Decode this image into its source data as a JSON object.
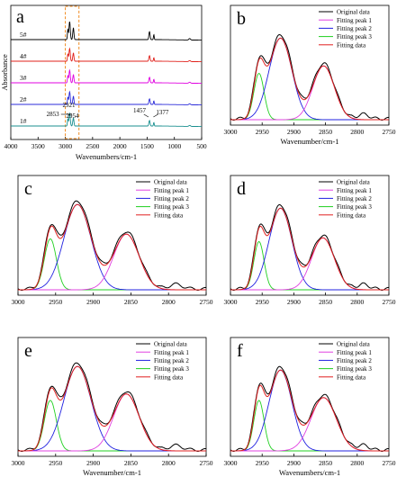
{
  "chart_data": [
    {
      "panel": "a",
      "type": "line",
      "xlabel": "Wavenumbers/cm-1",
      "ylabel": "Absorbance",
      "xlim": [
        4000,
        500
      ],
      "xticks": [
        "4000",
        "3500",
        "3000",
        "2500",
        "2000",
        "1500",
        "1000",
        "500"
      ],
      "series": [
        {
          "name": "5#",
          "color": "#000000"
        },
        {
          "name": "4#",
          "color": "#e0201b"
        },
        {
          "name": "3#",
          "color": "#e000e0"
        },
        {
          "name": "2#",
          "color": "#2b2bd9"
        },
        {
          "name": "1#",
          "color": "#1a8f8f"
        }
      ],
      "peak_labels": [
        "2853",
        "2921",
        "2954",
        "1457",
        "1377"
      ],
      "highlight_range": [
        3000,
        2750
      ]
    },
    {
      "panel": "b",
      "type": "line",
      "xlabel": "Wavenumber/cm-1",
      "xlim": [
        3000,
        2750
      ],
      "xticks": [
        "3000",
        "2950",
        "2900",
        "2850",
        "2800",
        "2750"
      ],
      "legend": [
        "Original data",
        "Fitting peak 1",
        "Fitting peak 2",
        "Fitting peak 3",
        "Fitting data"
      ],
      "peaks": [
        {
          "name": "Fitting peak 3",
          "center": 2955,
          "height": 0.5,
          "width": 8,
          "color": "#20d020"
        },
        {
          "name": "Fitting peak 2",
          "center": 2921,
          "height": 0.88,
          "width": 18,
          "color": "#2020e0"
        },
        {
          "name": "Fitting peak 1",
          "center": 2853,
          "height": 0.58,
          "width": 17,
          "color": "#e040e0"
        }
      ]
    },
    {
      "panel": "c",
      "type": "line",
      "xlabel": "",
      "xlim": [
        3000,
        2750
      ],
      "xticks": [
        "3000",
        "2950",
        "2900",
        "2850",
        "2800",
        "2750"
      ],
      "legend": [
        "Original data",
        "Fitting peak 1",
        "Fitting peak 2",
        "Fitting peak 3",
        "Fitting data"
      ],
      "peaks": [
        {
          "name": "Fitting peak 3",
          "center": 2957,
          "height": 0.55,
          "width": 8,
          "color": "#20d020"
        },
        {
          "name": "Fitting peak 2",
          "center": 2921,
          "height": 0.92,
          "width": 18,
          "color": "#2020e0"
        },
        {
          "name": "Fitting peak 1",
          "center": 2856,
          "height": 0.6,
          "width": 17,
          "color": "#e040e0"
        }
      ]
    },
    {
      "panel": "d",
      "type": "line",
      "xlabel": "",
      "xlim": [
        3000,
        2750
      ],
      "xticks": [
        "3000",
        "2950",
        "2900",
        "2850",
        "2800",
        "2750"
      ],
      "legend": [
        "Original data",
        "Fitting peak 1",
        "Fitting peak 2",
        "Fitting peak 3",
        "Fitting data"
      ],
      "peaks": [
        {
          "name": "Fitting peak 3",
          "center": 2955,
          "height": 0.52,
          "width": 8,
          "color": "#20d020"
        },
        {
          "name": "Fitting peak 2",
          "center": 2921,
          "height": 0.88,
          "width": 18,
          "color": "#2020e0"
        },
        {
          "name": "Fitting peak 1",
          "center": 2854,
          "height": 0.56,
          "width": 18,
          "color": "#e040e0"
        }
      ]
    },
    {
      "panel": "e",
      "type": "line",
      "xlabel": "Wavenumber/cm-1",
      "xlim": [
        3000,
        2750
      ],
      "xticks": [
        "3000",
        "2950",
        "2900",
        "2850",
        "2800",
        "2750"
      ],
      "legend": [
        "Original data",
        "Fitting peak 1",
        "Fitting peak 2",
        "Fitting peak 3",
        "Fitting data"
      ],
      "peaks": [
        {
          "name": "Fitting peak 3",
          "center": 2957,
          "height": 0.55,
          "width": 8,
          "color": "#20d020"
        },
        {
          "name": "Fitting peak 2",
          "center": 2921,
          "height": 0.92,
          "width": 18,
          "color": "#2020e0"
        },
        {
          "name": "Fitting peak 1",
          "center": 2856,
          "height": 0.62,
          "width": 17,
          "color": "#e040e0"
        }
      ]
    },
    {
      "panel": "f",
      "type": "line",
      "xlabel": "Wavenumbers/cm-1",
      "xlim": [
        3000,
        2750
      ],
      "xticks": [
        "3000",
        "2950",
        "2900",
        "2850",
        "2800",
        "2750"
      ],
      "legend": [
        "Original data",
        "Fitting peak 1",
        "Fitting peak 2",
        "Fitting peak 3",
        "Fitting data"
      ],
      "peaks": [
        {
          "name": "Fitting peak 3",
          "center": 2955,
          "height": 0.55,
          "width": 8,
          "color": "#20d020"
        },
        {
          "name": "Fitting peak 2",
          "center": 2921,
          "height": 0.88,
          "width": 18,
          "color": "#2020e0"
        },
        {
          "name": "Fitting peak 1",
          "center": 2853,
          "height": 0.58,
          "width": 20,
          "color": "#e040e0"
        }
      ]
    }
  ],
  "colors": {
    "original": "#000000",
    "peak1": "#e040e0",
    "peak2": "#2020e0",
    "peak3": "#20d020",
    "fit": "#e02020",
    "highlight_box": "#f08a20"
  }
}
